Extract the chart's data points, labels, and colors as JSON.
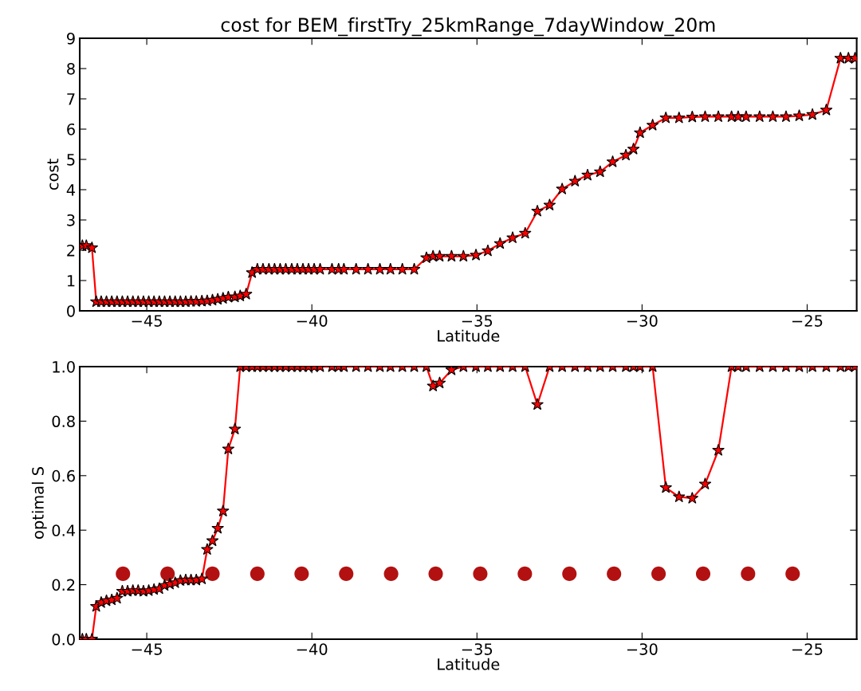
{
  "chart_data": [
    {
      "type": "line",
      "title": "cost for BEM_firstTry_25kmRange_7dayWindow_20m",
      "xlabel": "Latitude",
      "ylabel": "cost",
      "marker": "star",
      "line_style": "solid",
      "xlim": [
        -47.03,
        -23.5
      ],
      "xticks": [
        -45,
        -40,
        -35,
        -30,
        -25
      ],
      "ylim": [
        0,
        9
      ],
      "yticks": [
        0,
        1,
        2,
        3,
        4,
        5,
        6,
        7,
        8,
        9
      ],
      "x": [
        -46.95,
        -46.83,
        -46.66,
        -46.53,
        -46.38,
        -46.22,
        -46.06,
        -45.9,
        -45.74,
        -45.58,
        -45.42,
        -45.26,
        -45.1,
        -44.94,
        -44.78,
        -44.62,
        -44.46,
        -44.3,
        -44.14,
        -43.98,
        -43.82,
        -43.66,
        -43.5,
        -43.33,
        -43.17,
        -43.01,
        -42.85,
        -42.69,
        -42.53,
        -42.33,
        -42.17,
        -41.99,
        -41.81,
        -41.65,
        -41.48,
        -41.3,
        -41.13,
        -40.96,
        -40.79,
        -40.61,
        -40.44,
        -40.27,
        -40.1,
        -39.93,
        -39.75,
        -39.39,
        -39.19,
        -39.03,
        -38.66,
        -38.3,
        -37.94,
        -37.62,
        -37.26,
        -36.9,
        -36.53,
        -36.33,
        -36.13,
        -35.77,
        -35.41,
        -35.03,
        -34.67,
        -34.3,
        -33.92,
        -33.54,
        -33.17,
        -32.8,
        -32.42,
        -32.03,
        -31.65,
        -31.27,
        -30.89,
        -30.49,
        -30.26,
        -30.06,
        -29.68,
        -29.28,
        -28.88,
        -28.48,
        -28.09,
        -27.69,
        -27.29,
        -27.09,
        -26.85,
        -26.44,
        -26.04,
        -25.64,
        -25.24,
        -24.84,
        -24.42,
        -23.99,
        -23.75,
        -23.55
      ],
      "series": [
        {
          "color": "#ff0000",
          "values": [
            2.15,
            2.15,
            2.08,
            0.3,
            0.3,
            0.3,
            0.3,
            0.3,
            0.3,
            0.3,
            0.3,
            0.3,
            0.3,
            0.3,
            0.3,
            0.3,
            0.3,
            0.3,
            0.3,
            0.3,
            0.3,
            0.31,
            0.31,
            0.32,
            0.33,
            0.35,
            0.38,
            0.41,
            0.45,
            0.46,
            0.49,
            0.55,
            1.26,
            1.37,
            1.37,
            1.37,
            1.37,
            1.37,
            1.37,
            1.37,
            1.37,
            1.37,
            1.37,
            1.37,
            1.37,
            1.37,
            1.37,
            1.37,
            1.37,
            1.37,
            1.37,
            1.37,
            1.37,
            1.37,
            1.75,
            1.8,
            1.8,
            1.8,
            1.8,
            1.84,
            1.98,
            2.22,
            2.41,
            2.56,
            3.29,
            3.49,
            4.02,
            4.28,
            4.48,
            4.59,
            4.92,
            5.14,
            5.34,
            5.88,
            6.13,
            6.37,
            6.37,
            6.4,
            6.41,
            6.41,
            6.41,
            6.41,
            6.41,
            6.41,
            6.41,
            6.41,
            6.44,
            6.48,
            6.63,
            8.34,
            8.34,
            8.34
          ]
        }
      ]
    },
    {
      "type": "line",
      "xlabel": "Latitude",
      "ylabel": "optimal S",
      "marker": "star",
      "line_style": "solid",
      "xlim": [
        -47.03,
        -23.5
      ],
      "xticks": [
        -45,
        -40,
        -35,
        -30,
        -25
      ],
      "ylim": [
        0,
        1
      ],
      "yticks": [
        {
          "value": 0,
          "label": "0.0"
        },
        {
          "value": 0.2,
          "label": "0.2"
        },
        {
          "value": 0.4,
          "label": "0.4"
        },
        {
          "value": 0.6,
          "label": "0.6"
        },
        {
          "value": 0.8,
          "label": "0.8"
        },
        {
          "value": 1,
          "label": "1.0"
        }
      ],
      "x": [
        -46.95,
        -46.83,
        -46.66,
        -46.53,
        -46.38,
        -46.22,
        -46.06,
        -45.9,
        -45.74,
        -45.58,
        -45.42,
        -45.26,
        -45.1,
        -44.94,
        -44.78,
        -44.62,
        -44.46,
        -44.3,
        -44.14,
        -43.98,
        -43.82,
        -43.66,
        -43.5,
        -43.33,
        -43.17,
        -43.01,
        -42.85,
        -42.69,
        -42.53,
        -42.33,
        -42.17,
        -41.99,
        -41.81,
        -41.65,
        -41.48,
        -41.3,
        -41.13,
        -40.96,
        -40.79,
        -40.61,
        -40.44,
        -40.27,
        -40.1,
        -39.93,
        -39.75,
        -39.39,
        -39.19,
        -39.03,
        -38.66,
        -38.3,
        -37.94,
        -37.62,
        -37.26,
        -36.9,
        -36.53,
        -36.33,
        -36.13,
        -35.77,
        -35.41,
        -35.03,
        -34.67,
        -34.3,
        -33.92,
        -33.54,
        -33.17,
        -32.8,
        -32.42,
        -32.03,
        -31.65,
        -31.27,
        -30.89,
        -30.49,
        -30.26,
        -30.06,
        -29.68,
        -29.28,
        -28.88,
        -28.48,
        -28.09,
        -27.69,
        -27.29,
        -27.09,
        -26.85,
        -26.44,
        -26.04,
        -25.64,
        -25.24,
        -24.84,
        -24.42,
        -23.99,
        -23.75,
        -23.55
      ],
      "series": [
        {
          "color": "#ff0000",
          "values": [
            0,
            0,
            0,
            0.12,
            0.134,
            0.141,
            0.144,
            0.15,
            0.176,
            0.176,
            0.178,
            0.178,
            0.176,
            0.178,
            0.182,
            0.185,
            0.197,
            0.202,
            0.207,
            0.215,
            0.217,
            0.217,
            0.217,
            0.221,
            0.329,
            0.361,
            0.407,
            0.47,
            0.698,
            0.771,
            1,
            1,
            1,
            1,
            1,
            1,
            1,
            1,
            1,
            1,
            1,
            1,
            1,
            1,
            1,
            1,
            1,
            1,
            1,
            1,
            1,
            1,
            1,
            1,
            1,
            0.929,
            0.94,
            0.988,
            1,
            1,
            1,
            1,
            1,
            1,
            0.861,
            1,
            1,
            1,
            1,
            1,
            1,
            1,
            1,
            1,
            1,
            0.556,
            0.522,
            0.517,
            0.569,
            0.693,
            1,
            1,
            1,
            1,
            1,
            1,
            1,
            1,
            1,
            1,
            1,
            1
          ]
        },
        {
          "type": "scatter",
          "marker": "circle",
          "color": "#b31111",
          "x": [
            -45.72,
            -44.37,
            -43.01,
            -41.65,
            -40.31,
            -38.96,
            -37.6,
            -36.25,
            -34.9,
            -33.55,
            -32.2,
            -30.85,
            -29.5,
            -28.15,
            -26.79,
            -25.44
          ],
          "values": [
            0.24,
            0.24,
            0.24,
            0.24,
            0.24,
            0.24,
            0.24,
            0.24,
            0.24,
            0.24,
            0.24,
            0.24,
            0.24,
            0.24,
            0.24,
            0.24
          ]
        }
      ]
    }
  ]
}
